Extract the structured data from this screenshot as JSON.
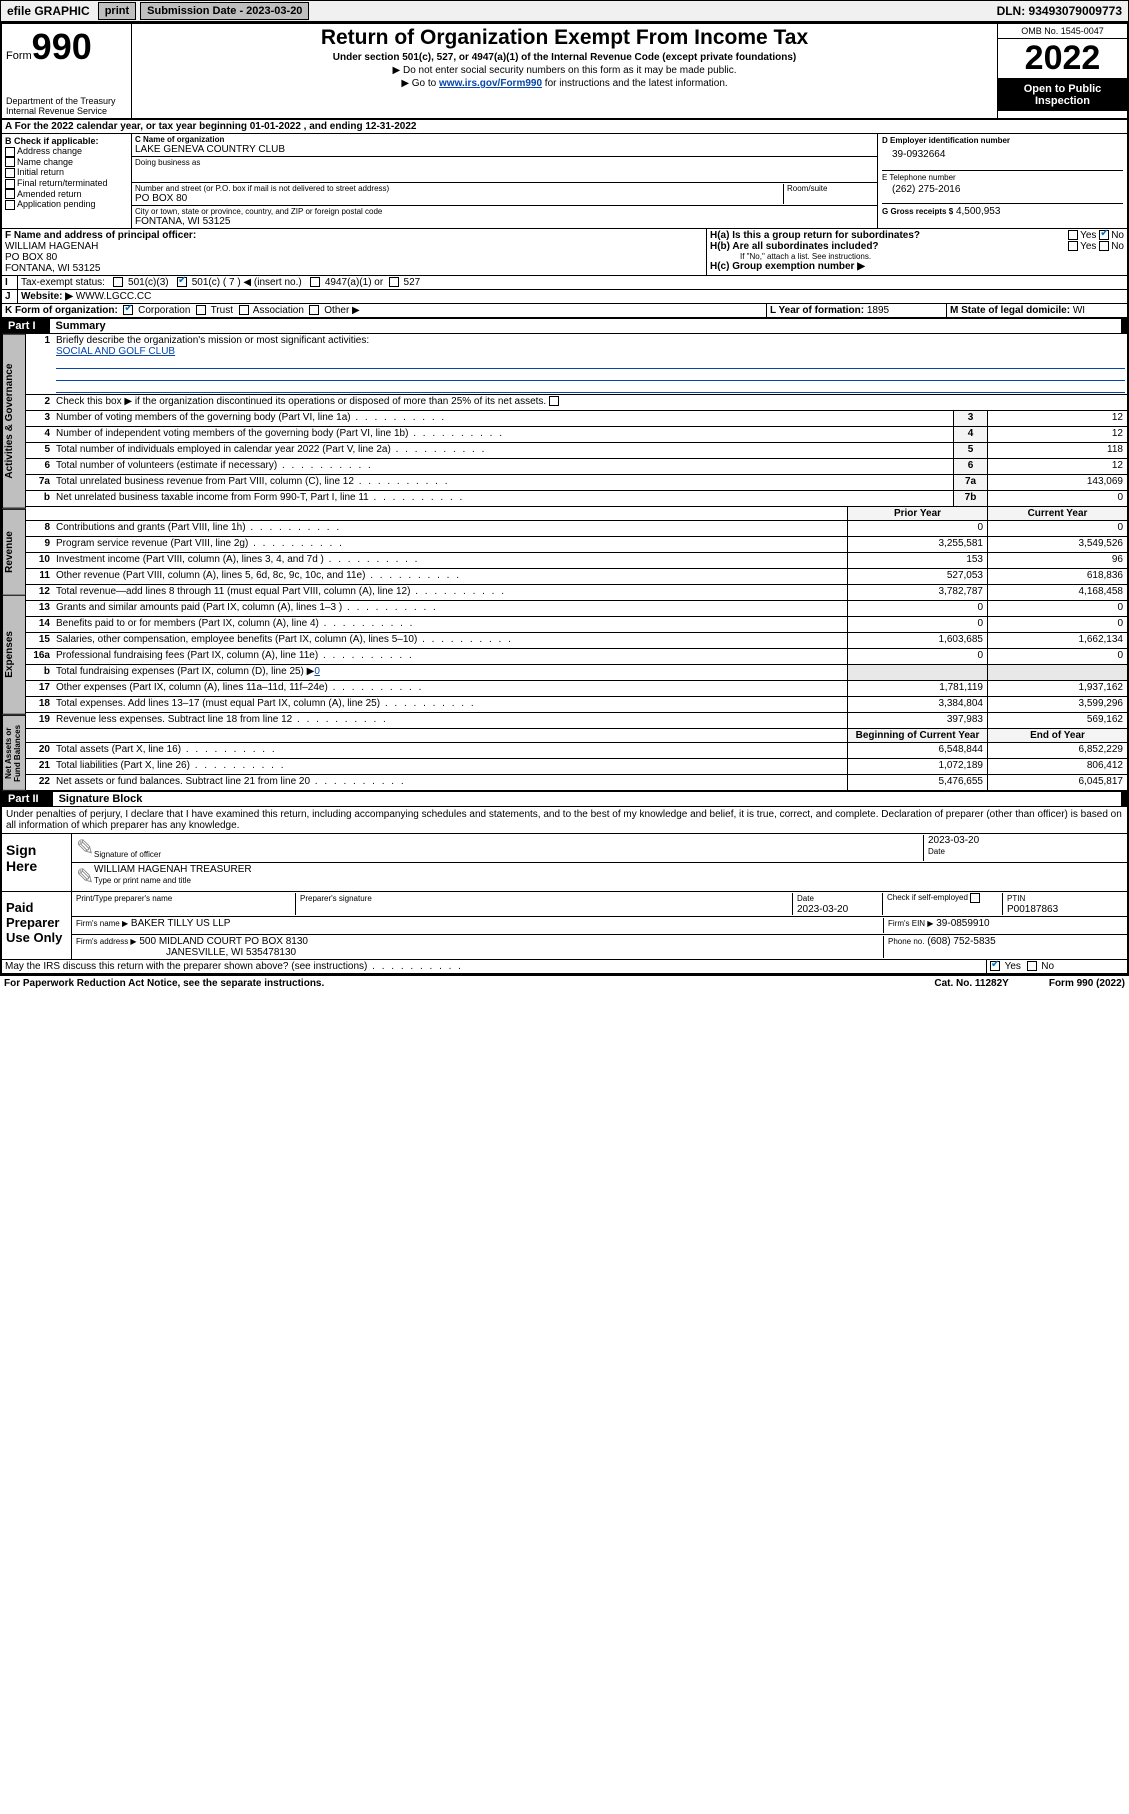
{
  "topbar": {
    "efile": "efile GRAPHIC",
    "print": "print",
    "subdate_label": "Submission Date - 2023-03-20",
    "dln": "DLN: 93493079009773"
  },
  "header": {
    "form_word": "Form",
    "form_num": "990",
    "title": "Return of Organization Exempt From Income Tax",
    "subtitle": "Under section 501(c), 527, or 4947(a)(1) of the Internal Revenue Code (except private foundations)",
    "note1": "▶ Do not enter social security numbers on this form as it may be made public.",
    "note2_pre": "▶ Go to ",
    "note2_link": "www.irs.gov/Form990",
    "note2_post": " for instructions and the latest information.",
    "dept": "Department of the Treasury",
    "irs": "Internal Revenue Service",
    "omb": "OMB No. 1545-0047",
    "year": "2022",
    "open": "Open to Public Inspection"
  },
  "periodA": "For the 2022 calendar year, or tax year beginning 01-01-2022   , and ending 12-31-2022",
  "sectionB": {
    "label": "B Check if applicable:",
    "opts": [
      "Address change",
      "Name change",
      "Initial return",
      "Final return/terminated",
      "Amended return",
      "Application pending"
    ]
  },
  "sectionC": {
    "name_lbl": "C Name of organization",
    "name": "LAKE GENEVA COUNTRY CLUB",
    "dba_lbl": "Doing business as",
    "addr_lbl": "Number and street (or P.O. box if mail is not delivered to street address)",
    "room_lbl": "Room/suite",
    "addr": "PO BOX 80",
    "city_lbl": "City or town, state or province, country, and ZIP or foreign postal code",
    "city": "FONTANA, WI  53125"
  },
  "rightD": {
    "lbl": "D Employer identification number",
    "val": "39-0932664"
  },
  "rightE": {
    "lbl": "E Telephone number",
    "val": "(262) 275-2016"
  },
  "rightG": {
    "lbl": "G Gross receipts $",
    "val": "4,500,953"
  },
  "sectionF": {
    "lbl": "F Name and address of principal officer:",
    "name": "WILLIAM HAGENAH",
    "addr1": "PO BOX 80",
    "addr2": "FONTANA, WI  53125"
  },
  "sectionH": {
    "ha": "H(a)  Is this a group return for subordinates?",
    "hb": "H(b)  Are all subordinates included?",
    "hb_note": "If \"No,\" attach a list. See instructions.",
    "hc": "H(c)  Group exemption number ▶",
    "yes": "Yes",
    "no": "No"
  },
  "sectionI": {
    "lbl": "Tax-exempt status:",
    "o1": "501(c)(3)",
    "o2": "501(c) ( 7 ) ◀ (insert no.)",
    "o3": "4947(a)(1) or",
    "o4": "527"
  },
  "sectionJ": {
    "lbl": "Website: ▶",
    "val": "WWW.LGCC.CC"
  },
  "sectionK": {
    "lbl": "K Form of organization:",
    "o1": "Corporation",
    "o2": "Trust",
    "o3": "Association",
    "o4": "Other ▶"
  },
  "sectionL": {
    "lbl": "L Year of formation:",
    "val": "1895"
  },
  "sectionM": {
    "lbl": "M State of legal domicile:",
    "val": "WI"
  },
  "part1": {
    "hdr": "Part I",
    "title": "Summary",
    "l1": "Briefly describe the organization's mission or most significant activities:",
    "mission": "SOCIAL AND GOLF CLUB",
    "l2": "Check this box ▶      if the organization discontinued its operations or disposed of more than 25% of its net assets.",
    "lines_single": [
      {
        "n": "3",
        "d": "Number of voting members of the governing body (Part VI, line 1a)",
        "k": "3",
        "v": "12"
      },
      {
        "n": "4",
        "d": "Number of independent voting members of the governing body (Part VI, line 1b)",
        "k": "4",
        "v": "12"
      },
      {
        "n": "5",
        "d": "Total number of individuals employed in calendar year 2022 (Part V, line 2a)",
        "k": "5",
        "v": "118"
      },
      {
        "n": "6",
        "d": "Total number of volunteers (estimate if necessary)",
        "k": "6",
        "v": "12"
      },
      {
        "n": "7a",
        "d": "Total unrelated business revenue from Part VIII, column (C), line 12",
        "k": "7a",
        "v": "143,069"
      },
      {
        "n": "b",
        "d": "Net unrelated business taxable income from Form 990-T, Part I, line 11",
        "k": "7b",
        "v": "0"
      }
    ],
    "hdr_prior": "Prior Year",
    "hdr_curr": "Current Year",
    "revenue": [
      {
        "n": "8",
        "d": "Contributions and grants (Part VIII, line 1h)",
        "p": "0",
        "c": "0"
      },
      {
        "n": "9",
        "d": "Program service revenue (Part VIII, line 2g)",
        "p": "3,255,581",
        "c": "3,549,526"
      },
      {
        "n": "10",
        "d": "Investment income (Part VIII, column (A), lines 3, 4, and 7d )",
        "p": "153",
        "c": "96"
      },
      {
        "n": "11",
        "d": "Other revenue (Part VIII, column (A), lines 5, 6d, 8c, 9c, 10c, and 11e)",
        "p": "527,053",
        "c": "618,836"
      },
      {
        "n": "12",
        "d": "Total revenue—add lines 8 through 11 (must equal Part VIII, column (A), line 12)",
        "p": "3,782,787",
        "c": "4,168,458"
      }
    ],
    "expenses": [
      {
        "n": "13",
        "d": "Grants and similar amounts paid (Part IX, column (A), lines 1–3 )",
        "p": "0",
        "c": "0"
      },
      {
        "n": "14",
        "d": "Benefits paid to or for members (Part IX, column (A), line 4)",
        "p": "0",
        "c": "0"
      },
      {
        "n": "15",
        "d": "Salaries, other compensation, employee benefits (Part IX, column (A), lines 5–10)",
        "p": "1,603,685",
        "c": "1,662,134"
      },
      {
        "n": "16a",
        "d": "Professional fundraising fees (Part IX, column (A), line 11e)",
        "p": "0",
        "c": "0"
      }
    ],
    "l16b_pre": "Total fundraising expenses (Part IX, column (D), line 25) ▶",
    "l16b_val": "0",
    "expenses2": [
      {
        "n": "17",
        "d": "Other expenses (Part IX, column (A), lines 11a–11d, 11f–24e)",
        "p": "1,781,119",
        "c": "1,937,162"
      },
      {
        "n": "18",
        "d": "Total expenses. Add lines 13–17 (must equal Part IX, column (A), line 25)",
        "p": "3,384,804",
        "c": "3,599,296"
      },
      {
        "n": "19",
        "d": "Revenue less expenses. Subtract line 18 from line 12",
        "p": "397,983",
        "c": "569,162"
      }
    ],
    "hdr_beg": "Beginning of Current Year",
    "hdr_end": "End of Year",
    "netassets": [
      {
        "n": "20",
        "d": "Total assets (Part X, line 16)",
        "p": "6,548,844",
        "c": "6,852,229"
      },
      {
        "n": "21",
        "d": "Total liabilities (Part X, line 26)",
        "p": "1,072,189",
        "c": "806,412"
      },
      {
        "n": "22",
        "d": "Net assets or fund balances. Subtract line 21 from line 20",
        "p": "5,476,655",
        "c": "6,045,817"
      }
    ],
    "tab_ag": "Activities & Governance",
    "tab_rev": "Revenue",
    "tab_exp": "Expenses",
    "tab_na": "Net Assets or Fund Balances"
  },
  "part2": {
    "hdr": "Part II",
    "title": "Signature Block",
    "decl": "Under penalties of perjury, I declare that I have examined this return, including accompanying schedules and statements, and to the best of my knowledge and belief, it is true, correct, and complete. Declaration of preparer (other than officer) is based on all information of which preparer has any knowledge.",
    "sign_here": "Sign Here",
    "sig_officer": "Signature of officer",
    "sig_date": "Date",
    "sig_date_val": "2023-03-20",
    "officer_name": "WILLIAM HAGENAH  TREASURER",
    "officer_lbl": "Type or print name and title",
    "paid": "Paid Preparer Use Only",
    "pp_name_lbl": "Print/Type preparer's name",
    "pp_sig_lbl": "Preparer's signature",
    "pp_date_lbl": "Date",
    "pp_date": "2023-03-20",
    "pp_self": "Check       if self-employed",
    "ptin_lbl": "PTIN",
    "ptin": "P00187863",
    "firm_name_lbl": "Firm's name    ▶",
    "firm_name": "BAKER TILLY US LLP",
    "firm_ein_lbl": "Firm's EIN ▶",
    "firm_ein": "39-0859910",
    "firm_addr_lbl": "Firm's address ▶",
    "firm_addr1": "500 MIDLAND COURT PO BOX 8130",
    "firm_addr2": "JANESVILLE, WI  535478130",
    "firm_phone_lbl": "Phone no.",
    "firm_phone": "(608) 752-5835",
    "discuss": "May the IRS discuss this return with the preparer shown above? (see instructions)",
    "yes": "Yes",
    "no": "No"
  },
  "footer": {
    "pra": "For Paperwork Reduction Act Notice, see the separate instructions.",
    "cat": "Cat. No. 11282Y",
    "form": "Form 990 (2022)"
  },
  "colors": {
    "link": "#0645ad",
    "check": "#0070c0",
    "grey_btn": "#bfbfbf",
    "tab_bg": "#bfbfbf"
  }
}
